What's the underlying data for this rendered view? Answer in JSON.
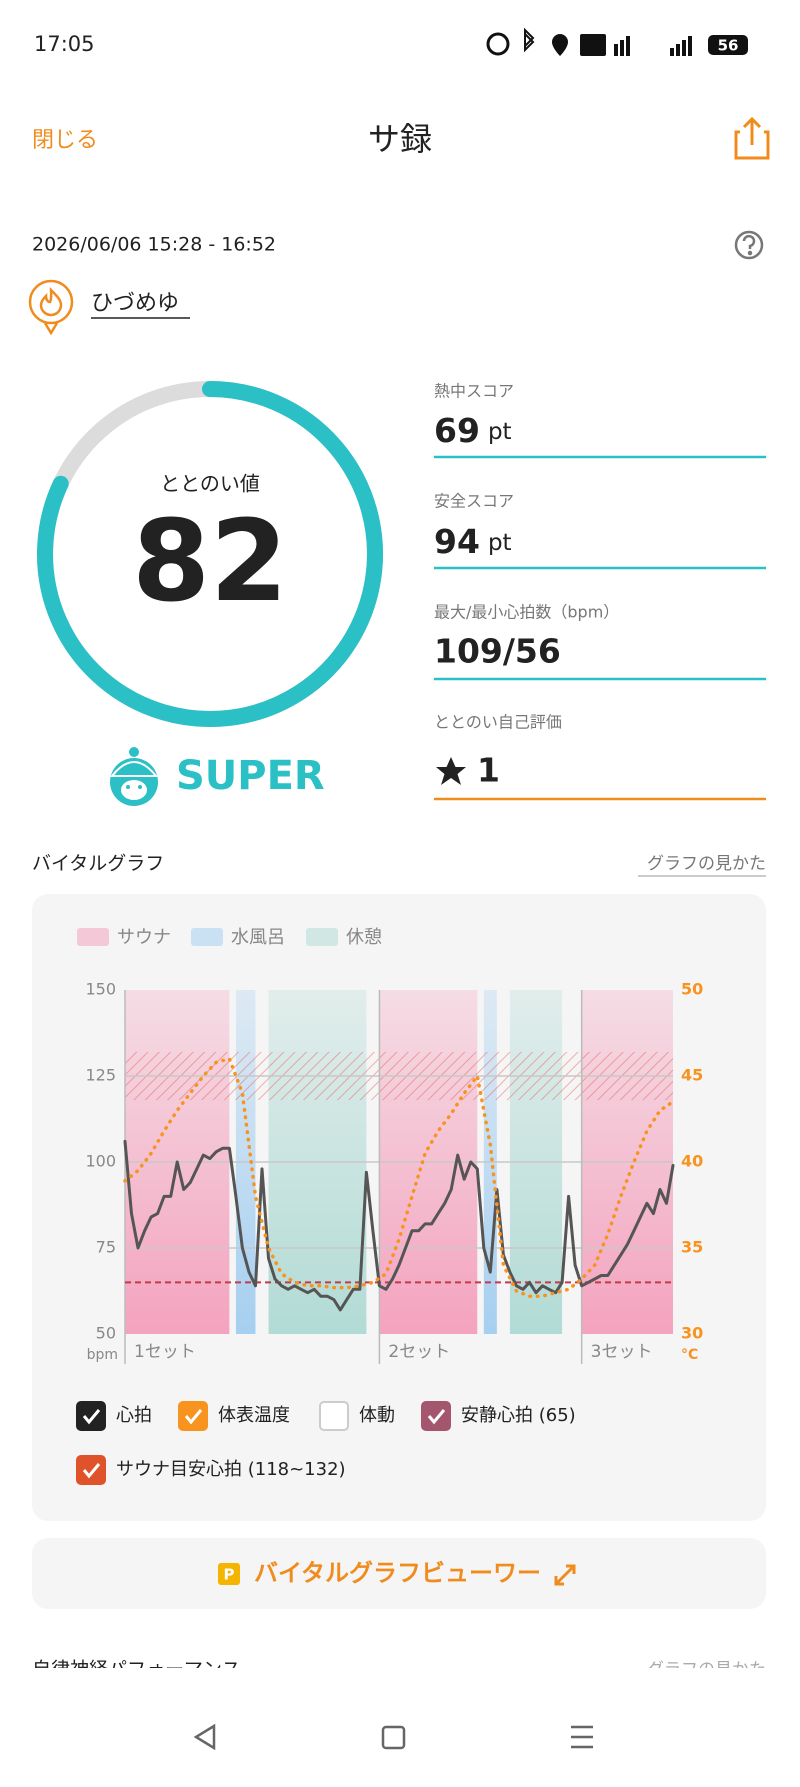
{
  "status_bar": {
    "time": "17:05",
    "battery": "56"
  },
  "header": {
    "close": "閉じる",
    "title": "サ録"
  },
  "session": {
    "datetime": "2026/06/06 15:28 - 16:52",
    "facility": "ひづめゆ"
  },
  "gauge": {
    "label": "ととのい値",
    "value": 82,
    "rank": "SUPER"
  },
  "metrics": [
    {
      "label": "熱中スコア",
      "value": 69,
      "unit": "pt"
    },
    {
      "label": "安全スコア",
      "value": 94,
      "unit": "pt"
    },
    {
      "label": "最大/最小心拍数（bpm）",
      "value": "109/56"
    },
    {
      "label": "ととのい自己評価",
      "value": 1
    }
  ],
  "vital_section": {
    "title": "バイタルグラフ",
    "help_link": "グラフの見かた"
  },
  "chart_data": {
    "type": "line",
    "bands": [
      {
        "name": "サウナ",
        "color": "#f4a3bf",
        "spans": [
          [
            0,
            16
          ],
          [
            39,
            54
          ],
          [
            70,
            84
          ]
        ]
      },
      {
        "name": "水風呂",
        "color": "#a6cff0",
        "spans": [
          [
            17,
            20
          ],
          [
            55,
            57
          ]
        ]
      },
      {
        "name": "休憩",
        "color": "#b2dbd5",
        "spans": [
          [
            22,
            37
          ],
          [
            59,
            67
          ]
        ]
      }
    ],
    "sets": [
      {
        "label": "1セット",
        "x": 0
      },
      {
        "label": "2セット",
        "x": 39
      },
      {
        "label": "3セット",
        "x": 70
      }
    ],
    "series": [
      {
        "name": "心拍",
        "color": "#555555",
        "x": [
          0,
          1,
          2,
          3,
          4,
          5,
          6,
          7,
          8,
          9,
          10,
          11,
          12,
          13,
          14,
          15,
          16,
          17,
          18,
          19,
          20,
          21,
          22,
          23,
          24,
          25,
          26,
          27,
          28,
          29,
          30,
          31,
          32,
          33,
          34,
          35,
          36,
          37,
          38,
          39,
          40,
          41,
          42,
          43,
          44,
          45,
          46,
          47,
          48,
          49,
          50,
          51,
          52,
          53,
          54,
          55,
          56,
          57,
          58,
          59,
          60,
          61,
          62,
          63,
          64,
          65,
          66,
          67,
          68,
          69,
          70,
          71,
          72,
          73,
          74,
          75,
          76,
          77,
          78,
          79,
          80,
          81,
          82,
          83,
          84
        ],
        "values": [
          106,
          85,
          75,
          80,
          84,
          85,
          90,
          90,
          100,
          92,
          94,
          98,
          102,
          101,
          103,
          104,
          104,
          90,
          75,
          68,
          64,
          98,
          72,
          66,
          64,
          63,
          64,
          63,
          62,
          63,
          61,
          61,
          60,
          57,
          60,
          63,
          63,
          97,
          80,
          64,
          63,
          66,
          70,
          75,
          80,
          80,
          82,
          82,
          85,
          88,
          92,
          102,
          95,
          100,
          98,
          75,
          68,
          92,
          73,
          68,
          64,
          63,
          65,
          62,
          64,
          63,
          62,
          65,
          90,
          70,
          64,
          65,
          66,
          67,
          67,
          70,
          73,
          76,
          80,
          84,
          88,
          85,
          92,
          88,
          99
        ]
      },
      {
        "name": "体表温度",
        "color": "#f7931e",
        "axis": "y2",
        "x": [
          0,
          2,
          4,
          6,
          8,
          10,
          12,
          14,
          16,
          18,
          20,
          22,
          24,
          26,
          28,
          30,
          32,
          34,
          36,
          38,
          40,
          42,
          44,
          46,
          48,
          50,
          52,
          54,
          56,
          58,
          60,
          62,
          64,
          66,
          68,
          70,
          72,
          74,
          76,
          78,
          80,
          82,
          84
        ],
        "values": [
          38.9,
          39.5,
          40.5,
          41.8,
          43,
          44,
          45,
          45.8,
          46,
          44,
          38,
          35,
          33.5,
          33,
          32.8,
          32.8,
          32.7,
          32.7,
          32.8,
          33,
          33.5,
          35.5,
          38,
          40.5,
          41.8,
          42.8,
          44,
          45,
          41,
          34,
          32.5,
          32.2,
          32.2,
          32.4,
          32.6,
          33.2,
          34,
          35.8,
          38,
          40,
          41.8,
          43,
          43.5
        ]
      }
    ],
    "xlim": [
      0,
      84
    ],
    "ylim": [
      50,
      150
    ],
    "yticks": [
      50,
      75,
      100,
      125,
      150
    ],
    "ylabel": "bpm",
    "y2lim": [
      30,
      50
    ],
    "y2ticks": [
      30,
      35,
      40,
      45,
      50
    ],
    "y2label": "°C",
    "grid": true,
    "resting_hr": {
      "value": 65,
      "color": "#c23a4f"
    },
    "target_zone": {
      "values": [
        118,
        132
      ],
      "color": "#e8554e"
    },
    "toggles": [
      {
        "label": "心拍",
        "checked": true,
        "color": "#222222"
      },
      {
        "label": "体表温度",
        "checked": true,
        "color": "#f7931e"
      },
      {
        "label": "体動",
        "checked": false,
        "color": "#ffffff"
      },
      {
        "label": "安静心拍 (65)",
        "checked": true,
        "color": "#a5566f"
      },
      {
        "label": "サウナ目安心拍 (118~132)",
        "checked": true,
        "color": "#e0532a"
      }
    ]
  },
  "viewer_button": {
    "badge": "P",
    "label": "バイタルグラフビューワー"
  },
  "next_section": {
    "title": "自律神経パフォーマンス",
    "help_link": "グラフの見かた"
  }
}
